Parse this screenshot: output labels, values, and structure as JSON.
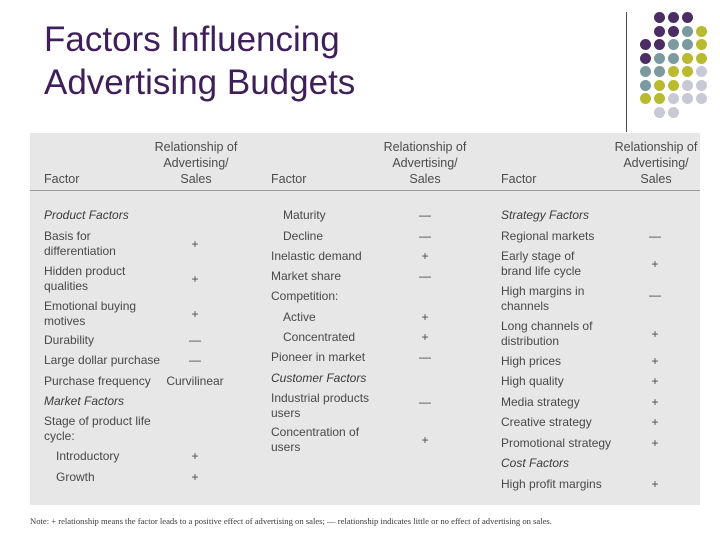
{
  "title": {
    "line1": "Factors Influencing",
    "line2": "Advertising Budgets"
  },
  "decor": {
    "dot_colors": [
      "#4b2d63",
      "#7a9aa0",
      "#b8bb2f",
      "#c9c9d6"
    ]
  },
  "table": {
    "headers": {
      "factor": "Factor",
      "relationship": "Relationship of\nAdvertising/\nSales"
    },
    "columns": [
      {
        "rows": [
          {
            "factor": "Product Factors",
            "rel": "",
            "section": true
          },
          {
            "factor": "Basis for\ndifferentiation",
            "rel": "+"
          },
          {
            "factor": "Hidden product\nqualities",
            "rel": "+"
          },
          {
            "factor": "Emotional buying\nmotives",
            "rel": "+"
          },
          {
            "factor": "Durability",
            "rel": "—"
          },
          {
            "factor": "Large dollar purchase",
            "rel": "—"
          },
          {
            "factor": "Purchase frequency",
            "rel": "Curvilinear"
          },
          {
            "factor": "Market Factors",
            "rel": "",
            "section": true
          },
          {
            "factor": "Stage of product life\ncycle:",
            "rel": ""
          },
          {
            "factor": "Introductory",
            "rel": "+",
            "indent": true
          },
          {
            "factor": "Growth",
            "rel": "+",
            "indent": true
          }
        ]
      },
      {
        "rows": [
          {
            "factor": "Maturity",
            "rel": "—",
            "indent": true
          },
          {
            "factor": "Decline",
            "rel": "—",
            "indent": true
          },
          {
            "factor": "Inelastic demand",
            "rel": "+"
          },
          {
            "factor": "Market share",
            "rel": "—"
          },
          {
            "factor": "Competition:",
            "rel": ""
          },
          {
            "factor": "Active",
            "rel": "+",
            "indent": true
          },
          {
            "factor": "Concentrated",
            "rel": "+",
            "indent": true
          },
          {
            "factor": "Pioneer in market",
            "rel": "—"
          },
          {
            "factor": "Customer Factors",
            "rel": "",
            "section": true
          },
          {
            "factor": "Industrial products\nusers",
            "rel": "—"
          },
          {
            "factor": "Concentration of\nusers",
            "rel": "+"
          }
        ]
      },
      {
        "rows": [
          {
            "factor": "Strategy Factors",
            "rel": "",
            "section": true
          },
          {
            "factor": "Regional markets",
            "rel": "—"
          },
          {
            "factor": "Early stage of\nbrand life cycle",
            "rel": "+"
          },
          {
            "factor": "High margins in\nchannels",
            "rel": "—"
          },
          {
            "factor": "Long channels of\ndistribution",
            "rel": "+"
          },
          {
            "factor": "High prices",
            "rel": "+"
          },
          {
            "factor": "High quality",
            "rel": "+"
          },
          {
            "factor": "Media strategy",
            "rel": "+"
          },
          {
            "factor": "Creative strategy",
            "rel": "+"
          },
          {
            "factor": "Promotional strategy",
            "rel": "+"
          },
          {
            "factor": "Cost Factors",
            "rel": "",
            "section": true
          },
          {
            "factor": "High profit margins",
            "rel": "+"
          }
        ]
      }
    ]
  },
  "note": "Note: + relationship means the factor leads to a positive effect of advertising on sales; — relationship indicates little or no effect of advertising on sales."
}
